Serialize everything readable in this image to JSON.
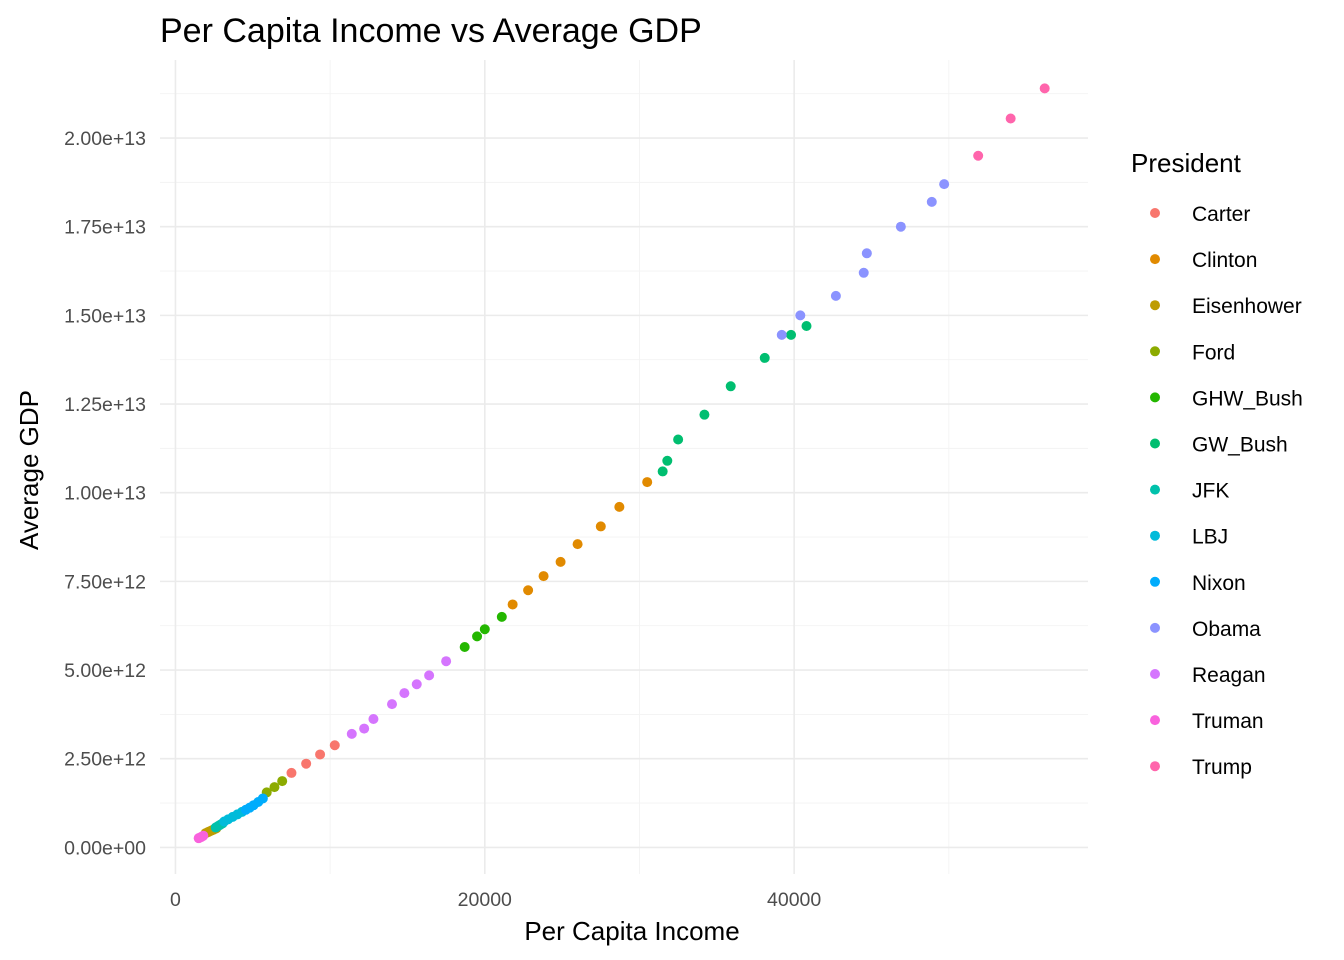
{
  "chart_data": {
    "type": "scatter",
    "title": "Per Capita Income vs Average GDP",
    "xlabel": "Per Capita Income",
    "ylabel": "Average GDP",
    "xlim": [
      -1000,
      59000
    ],
    "ylim": [
      -750000000000.0,
      22200000000000.0
    ],
    "x_ticks": [
      0,
      20000,
      40000
    ],
    "x_tick_labels": [
      "0",
      "20000",
      "40000"
    ],
    "y_ticks": [
      0,
      2500000000000.0,
      5000000000000.0,
      7500000000000.0,
      10000000000000.0,
      12500000000000.0,
      15000000000000.0,
      17500000000000.0,
      20000000000000.0
    ],
    "y_tick_labels": [
      "0.00e+00",
      "2.50e+12",
      "5.00e+12",
      "7.50e+12",
      "1.00e+13",
      "1.25e+13",
      "1.50e+13",
      "1.75e+13",
      "2.00e+13"
    ],
    "grid": true,
    "legend": {
      "title": "President",
      "position": "right"
    },
    "series": [
      {
        "name": "Carter",
        "color": "#F8766D",
        "points": [
          [
            7500,
            2100000000000.0
          ],
          [
            8450,
            2360000000000.0
          ],
          [
            9350,
            2620000000000.0
          ],
          [
            10300,
            2880000000000.0
          ]
        ]
      },
      {
        "name": "Clinton",
        "color": "#E18A00",
        "points": [
          [
            21800,
            6850000000000.0
          ],
          [
            22800,
            7250000000000.0
          ],
          [
            23800,
            7650000000000.0
          ],
          [
            24900,
            8050000000000.0
          ],
          [
            26000,
            8550000000000.0
          ],
          [
            27500,
            9050000000000.0
          ],
          [
            28700,
            9600000000000.0
          ],
          [
            30500,
            10300000000000.0
          ]
        ]
      },
      {
        "name": "Eisenhower",
        "color": "#BE9C00",
        "points": [
          [
            1950,
            400000000000.0
          ],
          [
            2050,
            420000000000.0
          ],
          [
            2150,
            440000000000.0
          ],
          [
            2250,
            460000000000.0
          ],
          [
            2350,
            480000000000.0
          ],
          [
            2450,
            500000000000.0
          ],
          [
            2550,
            520000000000.0
          ],
          [
            2650,
            540000000000.0
          ]
        ]
      },
      {
        "name": "Ford",
        "color": "#8CAB00",
        "points": [
          [
            5900,
            1550000000000.0
          ],
          [
            6400,
            1700000000000.0
          ],
          [
            6900,
            1870000000000.0
          ]
        ]
      },
      {
        "name": "GHW_Bush",
        "color": "#24B700",
        "points": [
          [
            18700,
            5650000000000.0
          ],
          [
            19500,
            5950000000000.0
          ],
          [
            20000,
            6150000000000.0
          ],
          [
            21100,
            6500000000000.0
          ]
        ]
      },
      {
        "name": "GW_Bush",
        "color": "#00BE70",
        "points": [
          [
            31500,
            10600000000000.0
          ],
          [
            31800,
            10900000000000.0
          ],
          [
            32500,
            11500000000000.0
          ],
          [
            34200,
            12200000000000.0
          ],
          [
            35900,
            13000000000000.0
          ],
          [
            38100,
            13800000000000.0
          ],
          [
            39800,
            14450000000000.0
          ],
          [
            40800,
            14700000000000.0
          ]
        ]
      },
      {
        "name": "JFK",
        "color": "#00C1AB",
        "points": [
          [
            2600,
            560000000000.0
          ],
          [
            2750,
            600000000000.0
          ],
          [
            2900,
            640000000000.0
          ],
          [
            3050,
            680000000000.0
          ]
        ]
      },
      {
        "name": "LBJ",
        "color": "#00BBDA",
        "points": [
          [
            3150,
            730000000000.0
          ],
          [
            3400,
            790000000000.0
          ],
          [
            3700,
            860000000000.0
          ],
          [
            4000,
            930000000000.0
          ],
          [
            4300,
            1000000000000.0
          ]
        ]
      },
      {
        "name": "Nixon",
        "color": "#00ACFC",
        "points": [
          [
            4550,
            1060000000000.0
          ],
          [
            4800,
            1120000000000.0
          ],
          [
            5050,
            1190000000000.0
          ],
          [
            5350,
            1280000000000.0
          ],
          [
            5650,
            1380000000000.0
          ]
        ]
      },
      {
        "name": "Obama",
        "color": "#8B93FF",
        "points": [
          [
            39200,
            14450000000000.0
          ],
          [
            40400,
            15000000000000.0
          ],
          [
            42700,
            15550000000000.0
          ],
          [
            44500,
            16200000000000.0
          ],
          [
            44700,
            16750000000000.0
          ],
          [
            46900,
            17500000000000.0
          ],
          [
            48900,
            18200000000000.0
          ],
          [
            49700,
            18700000000000.0
          ]
        ]
      },
      {
        "name": "Reagan",
        "color": "#D575FE",
        "points": [
          [
            11400,
            3200000000000.0
          ],
          [
            12200,
            3350000000000.0
          ],
          [
            12800,
            3620000000000.0
          ],
          [
            14000,
            4040000000000.0
          ],
          [
            14800,
            4350000000000.0
          ],
          [
            15600,
            4600000000000.0
          ],
          [
            16400,
            4850000000000.0
          ],
          [
            17500,
            5250000000000.0
          ]
        ]
      },
      {
        "name": "Truman",
        "color": "#F962DD",
        "points": [
          [
            1500,
            260000000000.0
          ],
          [
            1600,
            280000000000.0
          ],
          [
            1700,
            300000000000.0
          ],
          [
            1800,
            330000000000.0
          ]
        ]
      },
      {
        "name": "Trump",
        "color": "#FF65AC",
        "points": [
          [
            51900,
            19500000000000.0
          ],
          [
            54000,
            20550000000000.0
          ],
          [
            56200,
            21400000000000.0
          ]
        ]
      }
    ]
  }
}
